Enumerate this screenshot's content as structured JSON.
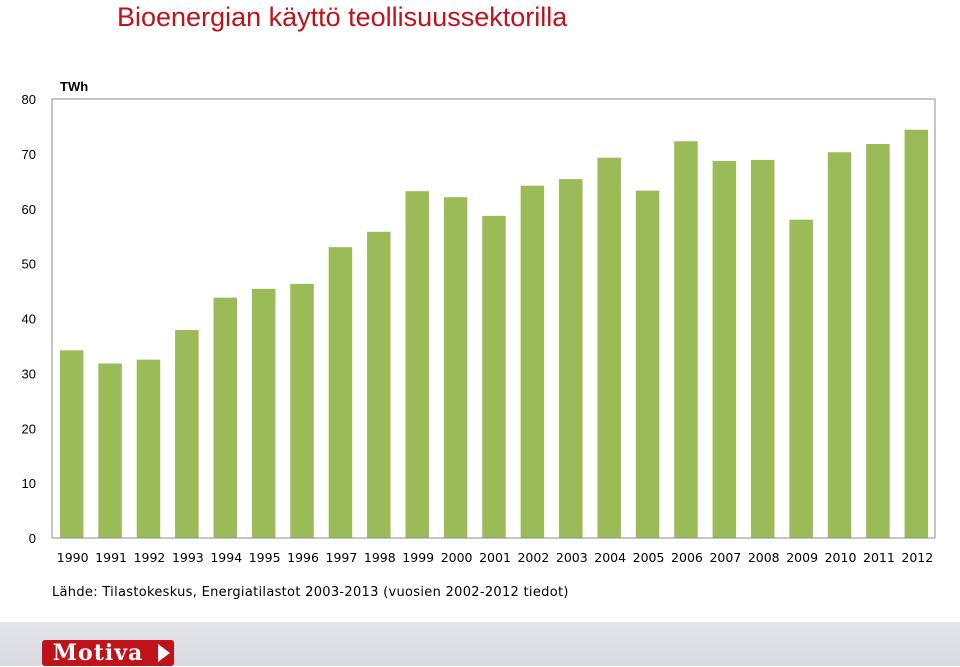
{
  "title": "Bioenergian käyttö teollisuussektorilla",
  "source": "Lähde: Tilastokeskus, Energiatilastot 2003-2013 (vuosien 2002-2012 tiedot)",
  "logo_text": "Motiva",
  "colors": {
    "bar": "#9bbb59",
    "title": "#c0121b",
    "logo": "#c0121b"
  },
  "chart_data": {
    "type": "bar",
    "title": "Bioenergian käyttö teollisuussektorilla",
    "ylabel": "TWh",
    "xlabel": "",
    "ylim": [
      0,
      80
    ],
    "yticks": [
      0,
      10,
      20,
      30,
      40,
      50,
      60,
      70,
      80
    ],
    "grid": false,
    "categories": [
      "1990",
      "1991",
      "1992",
      "1993",
      "1994",
      "1995",
      "1996",
      "1997",
      "1998",
      "1999",
      "2000",
      "2001",
      "2002",
      "2003",
      "2004",
      "2005",
      "2006",
      "2007",
      "2008",
      "2009",
      "2010",
      "2011",
      "2012"
    ],
    "values": [
      34.2,
      31.8,
      32.5,
      37.9,
      43.8,
      45.4,
      46.3,
      53.0,
      55.8,
      63.2,
      62.1,
      58.7,
      64.2,
      65.4,
      69.3,
      63.3,
      72.3,
      68.7,
      68.9,
      58.0,
      70.3,
      71.8,
      74.4
    ]
  }
}
